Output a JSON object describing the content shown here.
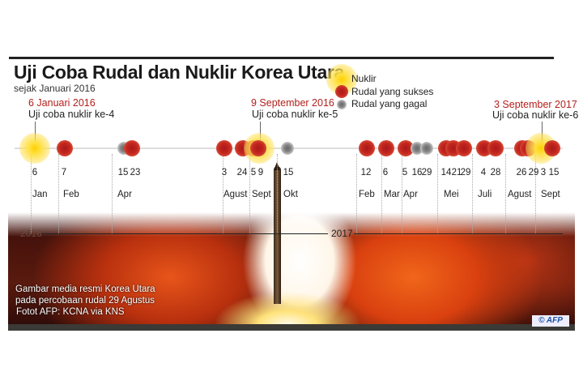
{
  "title": "Uji Coba Rudal dan Nuklir Korea Utara",
  "subtitle": "sejak Januari 2016",
  "legend": [
    {
      "label": "Nuklir",
      "type": "nuclear"
    },
    {
      "label": "Rudal yang sukses",
      "type": "success"
    },
    {
      "label": "Rudal yang gagal",
      "type": "fail"
    }
  ],
  "highlights": [
    {
      "date": "6 Januari 2016",
      "desc": "Uji coba nuklir ke-4"
    },
    {
      "date": "9 September 2016",
      "desc": "Uji coba nuklir ke-5"
    },
    {
      "date": "3 September 2017",
      "desc": "Uji coba nuklir ke-6"
    }
  ],
  "years": [
    "2016",
    "2017"
  ],
  "months": [
    "Jan",
    "Feb",
    "Apr",
    "Agust",
    "Sept",
    "Okt",
    "Feb",
    "Mar",
    "Apr",
    "Mei",
    "Juli",
    "Agust",
    "Sept"
  ],
  "events": [
    {
      "year": 2016,
      "month": "Jan",
      "day": "6",
      "type": "nuclear"
    },
    {
      "year": 2016,
      "month": "Feb",
      "day": "7",
      "type": "success"
    },
    {
      "year": 2016,
      "month": "Apr",
      "day": "15",
      "type": "fail"
    },
    {
      "year": 2016,
      "month": "Apr",
      "day": "23",
      "type": "success"
    },
    {
      "year": 2016,
      "month": "Agust",
      "day": "3",
      "type": "success"
    },
    {
      "year": 2016,
      "month": "Agust",
      "day": "24",
      "type": "success"
    },
    {
      "year": 2016,
      "month": "Sept",
      "day": "5",
      "type": "success"
    },
    {
      "year": 2016,
      "month": "Sept",
      "day": "9",
      "type": "nuclear"
    },
    {
      "year": 2016,
      "month": "Okt",
      "day": "15",
      "type": "fail"
    },
    {
      "year": 2017,
      "month": "Feb",
      "day": "12",
      "type": "success"
    },
    {
      "year": 2017,
      "month": "Mar",
      "day": "6",
      "type": "success"
    },
    {
      "year": 2017,
      "month": "Apr",
      "day": "5",
      "type": "success"
    },
    {
      "year": 2017,
      "month": "Apr",
      "day": "16",
      "type": "fail"
    },
    {
      "year": 2017,
      "month": "Apr",
      "day": "29",
      "type": "fail"
    },
    {
      "year": 2017,
      "month": "Mei",
      "day": "14",
      "type": "success"
    },
    {
      "year": 2017,
      "month": "Mei",
      "day": "21",
      "type": "success"
    },
    {
      "year": 2017,
      "month": "Mei",
      "day": "29",
      "type": "success"
    },
    {
      "year": 2017,
      "month": "Juli",
      "day": "4",
      "type": "success"
    },
    {
      "year": 2017,
      "month": "Juli",
      "day": "28",
      "type": "success"
    },
    {
      "year": 2017,
      "month": "Agust",
      "day": "26",
      "type": "success"
    },
    {
      "year": 2017,
      "month": "Agust",
      "day": "29",
      "type": "success"
    },
    {
      "year": 2017,
      "month": "Sept",
      "day": "3",
      "type": "nuclear"
    },
    {
      "year": 2017,
      "month": "Sept",
      "day": "15",
      "type": "success"
    }
  ],
  "photo": {
    "caption": "Gambar media resmi Korea Utara",
    "caption2": "pada percobaan rudal 29 Agustus",
    "credit": "Fotot AFP: KCNA via KNS",
    "logo": "© AFP"
  },
  "colors": {
    "nuclear": "#ffd000",
    "success": "#c4261e",
    "fail": "#888888",
    "highlight": "#b3201c"
  }
}
